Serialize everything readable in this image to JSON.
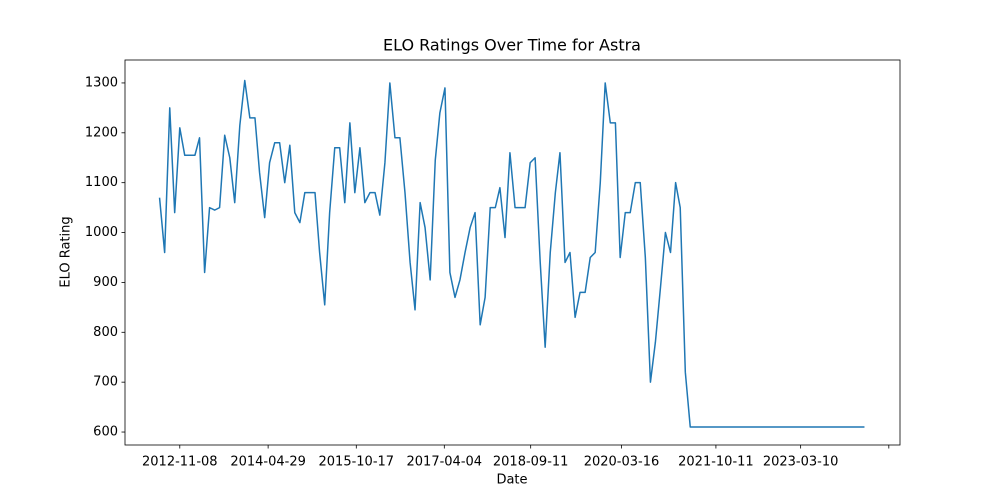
{
  "chart_data": {
    "type": "line",
    "title": "ELO Ratings Over Time for Astra",
    "x_label": "Date",
    "y_label": "ELO Rating",
    "color": "#1f77b4",
    "x": [
      "2012-07-08",
      "2012-08-08",
      "2012-09-08",
      "2012-10-08",
      "2012-11-08",
      "2012-12-08",
      "2013-01-08",
      "2013-02-08",
      "2013-03-08",
      "2013-04-08",
      "2013-05-08",
      "2013-06-08",
      "2013-07-08",
      "2013-08-08",
      "2013-09-08",
      "2013-10-08",
      "2013-11-08",
      "2013-12-08",
      "2014-01-08",
      "2014-02-08",
      "2014-03-08",
      "2014-04-08",
      "2014-05-08",
      "2014-06-08",
      "2014-07-08",
      "2014-08-08",
      "2014-09-08",
      "2014-10-08",
      "2014-11-08",
      "2014-12-08",
      "2015-01-08",
      "2015-02-08",
      "2015-03-08",
      "2015-04-08",
      "2015-05-08",
      "2015-06-08",
      "2015-07-08",
      "2015-08-08",
      "2015-09-08",
      "2015-10-08",
      "2015-11-08",
      "2015-12-08",
      "2016-01-08",
      "2016-02-08",
      "2016-03-08",
      "2016-04-08",
      "2016-05-08",
      "2016-06-08",
      "2016-07-08",
      "2016-08-08",
      "2016-09-08",
      "2016-10-08",
      "2016-11-08",
      "2016-12-08",
      "2017-01-08",
      "2017-02-08",
      "2017-03-08",
      "2017-04-08",
      "2017-05-08",
      "2017-06-08",
      "2017-07-08",
      "2017-08-08",
      "2017-09-08",
      "2017-10-08",
      "2017-11-08",
      "2017-12-08",
      "2018-01-08",
      "2018-02-08",
      "2018-03-08",
      "2018-04-08",
      "2018-05-08",
      "2018-06-08",
      "2018-07-08",
      "2018-08-08",
      "2018-09-08",
      "2018-10-08",
      "2018-11-08",
      "2018-12-08",
      "2019-01-08",
      "2019-02-08",
      "2019-03-08",
      "2019-04-08",
      "2019-05-08",
      "2019-06-08",
      "2019-07-08",
      "2019-08-08",
      "2019-09-08",
      "2019-10-08",
      "2019-11-08",
      "2019-12-08",
      "2020-01-08",
      "2020-02-08",
      "2020-03-08",
      "2020-04-08",
      "2020-05-08",
      "2020-06-08",
      "2020-07-08",
      "2020-08-08",
      "2020-09-08",
      "2020-10-08",
      "2020-11-08",
      "2020-12-08",
      "2021-01-08",
      "2021-02-08",
      "2021-03-08",
      "2021-04-08",
      "2021-05-08",
      "2024-04-01"
    ],
    "values": [
      1070,
      960,
      1250,
      1040,
      1210,
      1155,
      1155,
      1155,
      1190,
      920,
      1050,
      1045,
      1050,
      1195,
      1150,
      1060,
      1215,
      1305,
      1230,
      1230,
      1120,
      1030,
      1140,
      1180,
      1180,
      1100,
      1175,
      1040,
      1020,
      1080,
      1080,
      1080,
      960,
      855,
      1040,
      1170,
      1170,
      1060,
      1220,
      1080,
      1170,
      1060,
      1080,
      1080,
      1035,
      1140,
      1300,
      1190,
      1190,
      1080,
      940,
      845,
      1060,
      1010,
      905,
      1145,
      1240,
      1290,
      920,
      870,
      905,
      960,
      1010,
      1040,
      815,
      870,
      1050,
      1050,
      1090,
      990,
      1160,
      1050,
      1050,
      1050,
      1140,
      1150,
      940,
      770,
      960,
      1080,
      1160,
      940,
      960,
      830,
      880,
      880,
      950,
      960,
      1100,
      1300,
      1220,
      1220,
      950,
      1040,
      1040,
      1100,
      1100,
      950,
      700,
      780,
      890,
      1000,
      960,
      1100,
      1050,
      720,
      610,
      610
    ],
    "xlim": [
      "2011-12-11",
      "2024-11-03"
    ],
    "ylim": [
      574,
      1346
    ],
    "xticks": [
      "2012-11-08",
      "2014-04-29",
      "2015-10-17",
      "2017-04-04",
      "2018-09-11",
      "2020-03-16",
      "2021-10-11",
      "2023-03-10",
      {
        "value": "2024-08-27",
        "label": null
      }
    ],
    "yticks": [
      600,
      700,
      800,
      900,
      1000,
      1100,
      1200,
      1300
    ]
  }
}
